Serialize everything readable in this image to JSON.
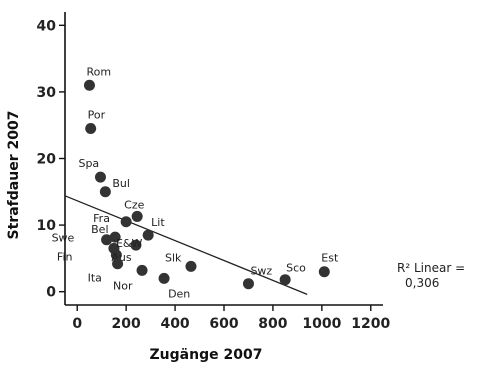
{
  "chart_data": {
    "type": "scatter",
    "xlabel": "Zugänge 2007",
    "ylabel": "Strafdauer 2007",
    "xlim": [
      -50,
      1250
    ],
    "ylim": [
      -2,
      42
    ],
    "x_ticks": [
      0,
      200,
      400,
      600,
      800,
      1000,
      1200
    ],
    "y_ticks": [
      0,
      10,
      20,
      30,
      40
    ],
    "grid": false,
    "colors": {
      "point": "#333333",
      "axis": "#111111",
      "line": "#222222"
    },
    "points": [
      {
        "label": "Rom",
        "x": 50,
        "y": 31.0
      },
      {
        "label": "Por",
        "x": 55,
        "y": 24.5
      },
      {
        "label": "Spa",
        "x": 95,
        "y": 17.2
      },
      {
        "label": "Bul",
        "x": 115,
        "y": 15.0
      },
      {
        "label": "Fra",
        "x": 200,
        "y": 10.5
      },
      {
        "label": "Cze",
        "x": 245,
        "y": 11.3
      },
      {
        "label": "Lit",
        "x": 290,
        "y": 8.5
      },
      {
        "label": "Bel",
        "x": 155,
        "y": 8.2
      },
      {
        "label": "Swe",
        "x": 120,
        "y": 7.8
      },
      {
        "label": "Fin",
        "x": 150,
        "y": 6.5
      },
      {
        "label": "Aus",
        "x": 160,
        "y": 5.5
      },
      {
        "label": "Ita",
        "x": 165,
        "y": 4.2
      },
      {
        "label": "E&W",
        "x": 240,
        "y": 7.0
      },
      {
        "label": "Nor",
        "x": 265,
        "y": 3.2
      },
      {
        "label": "Slk",
        "x": 465,
        "y": 3.8
      },
      {
        "label": "Den",
        "x": 355,
        "y": 2.0
      },
      {
        "label": "Swz",
        "x": 700,
        "y": 1.2
      },
      {
        "label": "Sco",
        "x": 850,
        "y": 1.8
      },
      {
        "label": "Est",
        "x": 1010,
        "y": 3.0
      }
    ],
    "fit_line": {
      "x": [
        -50,
        940
      ],
      "y": [
        14.4,
        -0.4
      ]
    },
    "annotation": {
      "line1": "R² Linear =",
      "line2": "0,306"
    }
  }
}
